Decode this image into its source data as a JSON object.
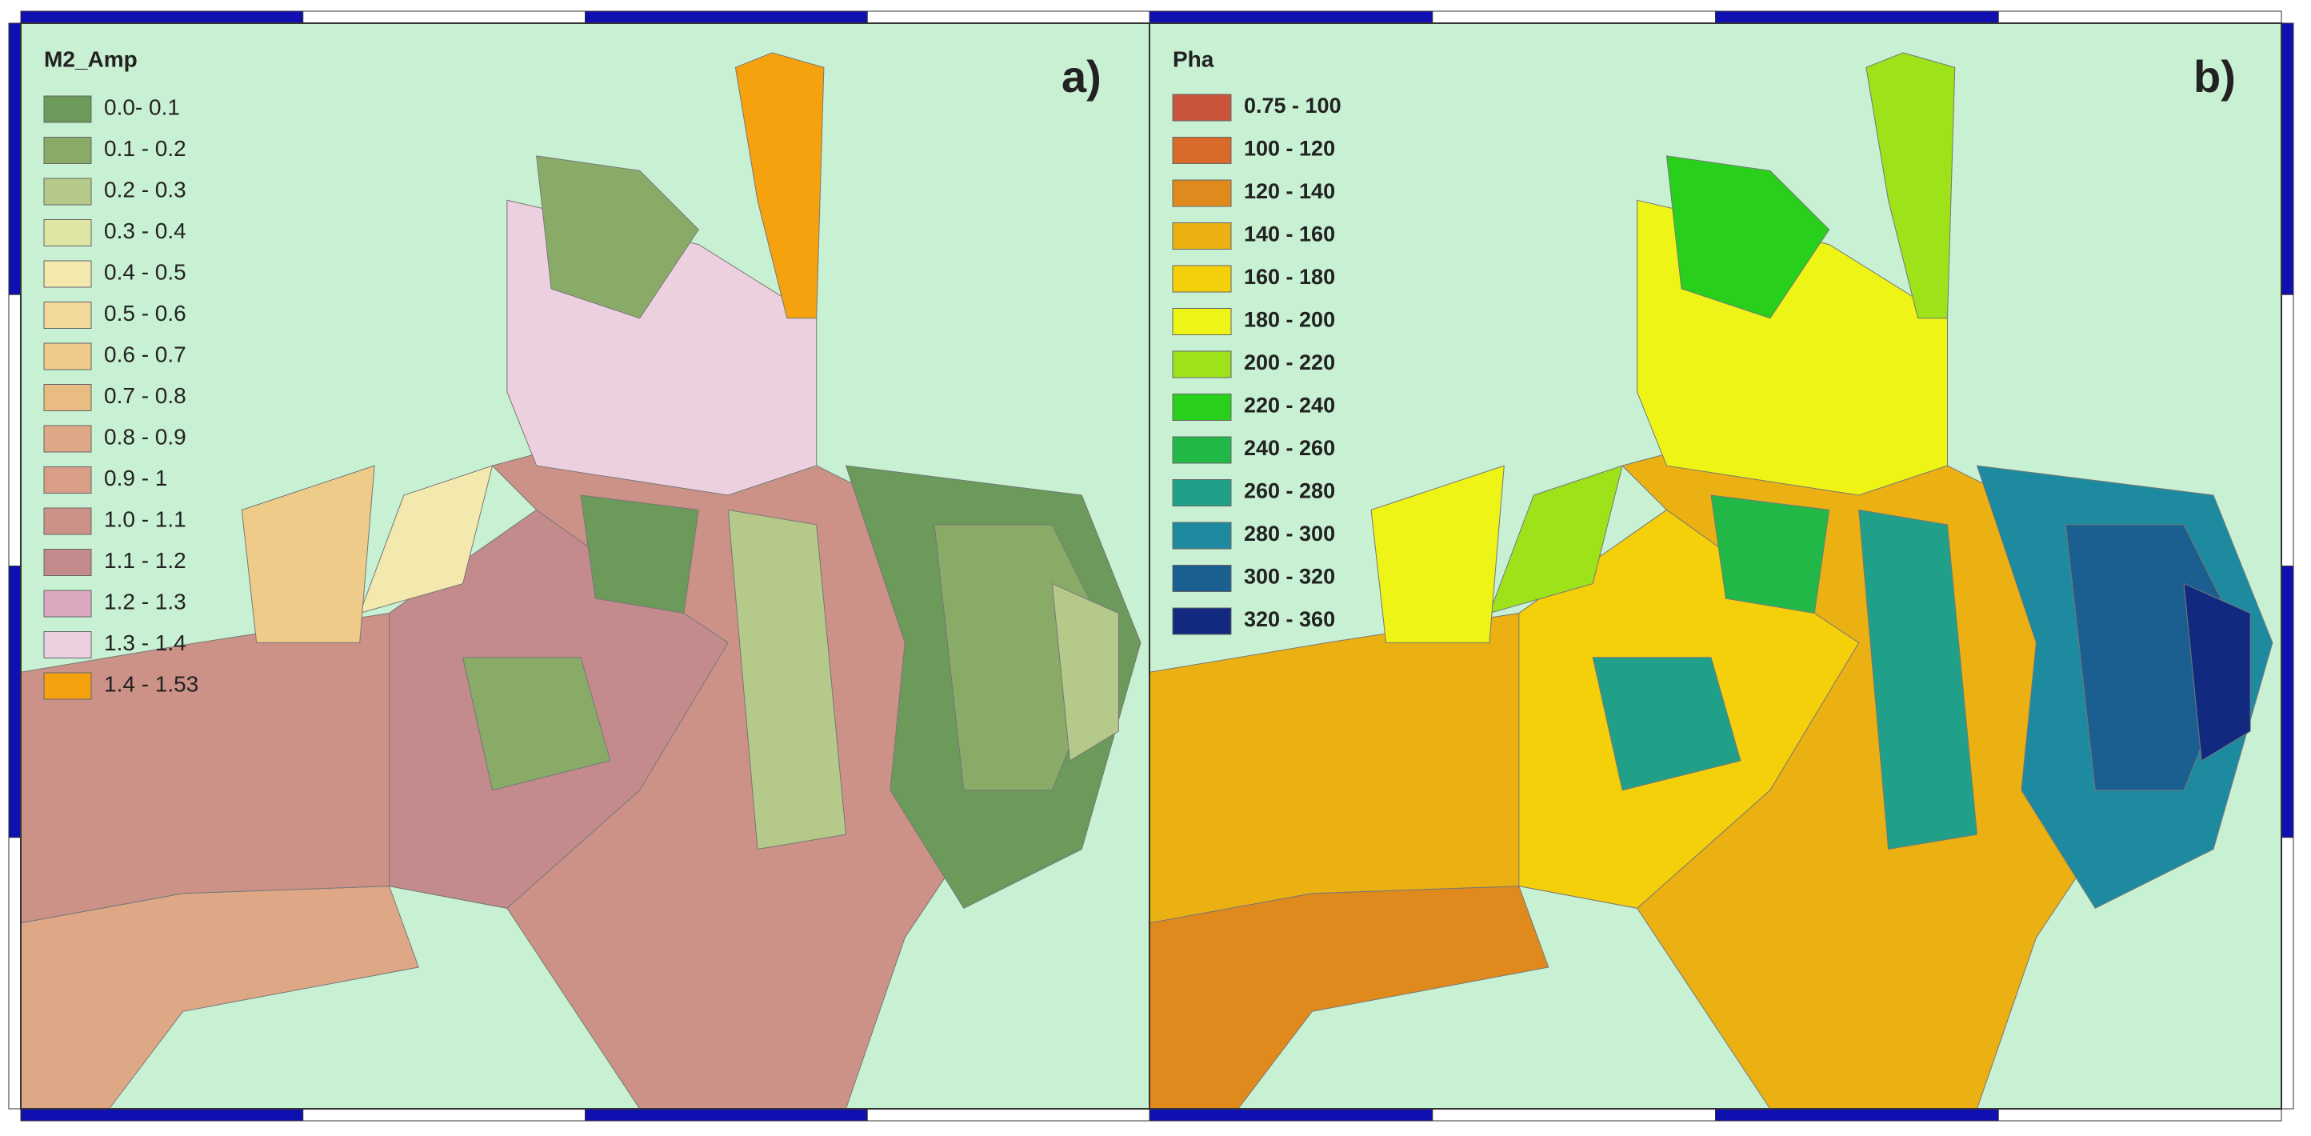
{
  "panels": [
    {
      "label": "a)",
      "legend": {
        "title": "M2_Amp",
        "items": [
          {
            "label": "0.0- 0.1",
            "color": "#6b9a5a"
          },
          {
            "label": "0.1 - 0.2",
            "color": "#8aab68"
          },
          {
            "label": "0.2 - 0.3",
            "color": "#b5c98a"
          },
          {
            "label": "0.3 - 0.4",
            "color": "#dfe5a5"
          },
          {
            "label": "0.4 - 0.5",
            "color": "#f3e8ad"
          },
          {
            "label": "0.5 - 0.6",
            "color": "#f2d899"
          },
          {
            "label": "0.6 - 0.7",
            "color": "#efcb8a"
          },
          {
            "label": "0.7 - 0.8",
            "color": "#e9bc82"
          },
          {
            "label": "0.8 - 0.9",
            "color": "#dea887"
          },
          {
            "label": "0.9 - 1",
            "color": "#d89f86"
          },
          {
            "label": "1.0 - 1.1",
            "color": "#cc9287"
          },
          {
            "label": "1.1 - 1.2",
            "color": "#c48b8d"
          },
          {
            "label": "1.2 - 1.3",
            "color": "#dba8c0"
          },
          {
            "label": "1.3 - 1.4",
            "color": "#ecd0e0"
          },
          {
            "label": "1.4 - 1.53",
            "color": "#f5a20e"
          }
        ]
      }
    },
    {
      "label": "b)",
      "legend": {
        "title": "Pha",
        "items": [
          {
            "label": "0.75 - 100",
            "color": "#c8543c"
          },
          {
            "label": "100 - 120",
            "color": "#d86a2c"
          },
          {
            "label": "120 - 140",
            "color": "#e08a1e"
          },
          {
            "label": "140 - 160",
            "color": "#ebb012"
          },
          {
            "label": "160 - 180",
            "color": "#f4d00a"
          },
          {
            "label": "180 - 200",
            "color": "#eef516"
          },
          {
            "label": "200 - 220",
            "color": "#9ee21a"
          },
          {
            "label": "220 - 240",
            "color": "#28d01c"
          },
          {
            "label": "240 - 260",
            "color": "#22b848"
          },
          {
            "label": "260 - 280",
            "color": "#20a088"
          },
          {
            "label": "280 - 300",
            "color": "#1e8aa0"
          },
          {
            "label": "300 - 320",
            "color": "#1a5f90"
          },
          {
            "label": "320 - 360",
            "color": "#112a80"
          }
        ]
      }
    }
  ]
}
